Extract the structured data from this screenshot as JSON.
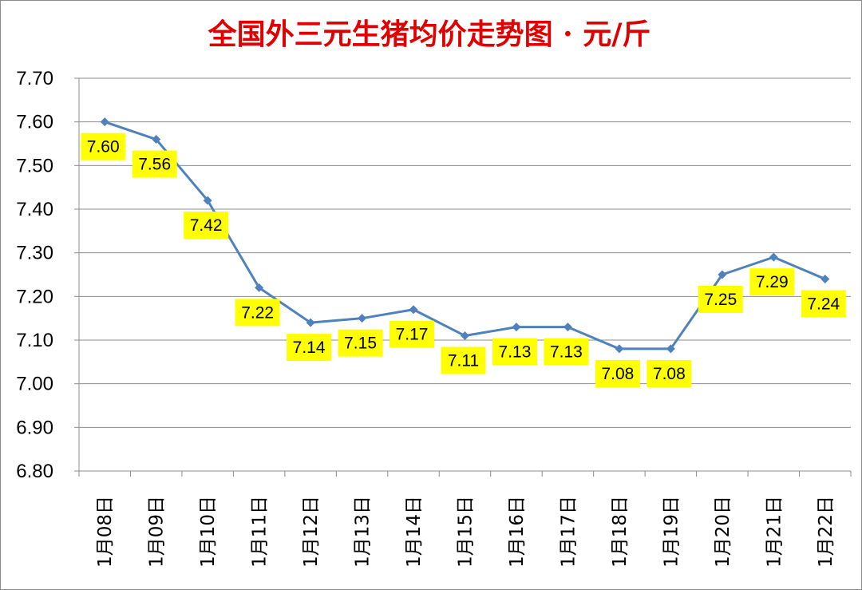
{
  "chart_data": {
    "type": "line",
    "title": "全国外三元生猪均价走势图 · 元/斤",
    "xlabel": "",
    "ylabel": "",
    "categories": [
      "1月08日",
      "1月09日",
      "1月10日",
      "1月11日",
      "1月12日",
      "1月13日",
      "1月14日",
      "1月15日",
      "1月16日",
      "1月17日",
      "1月18日",
      "1月19日",
      "1月20日",
      "1月21日",
      "1月22日"
    ],
    "series": [
      {
        "values": [
          7.6,
          7.56,
          7.42,
          7.22,
          7.14,
          7.15,
          7.17,
          7.11,
          7.13,
          7.13,
          7.08,
          7.08,
          7.25,
          7.29,
          7.24
        ]
      }
    ],
    "data_labels": [
      "7.60",
      "7.56",
      "7.42",
      "7.22",
      "7.14",
      "7.15",
      "7.17",
      "7.11",
      "7.13",
      "7.13",
      "7.08",
      "7.08",
      "7.25",
      "7.29",
      "7.24"
    ],
    "y_ticks": [
      "6.80",
      "6.90",
      "7.00",
      "7.10",
      "7.20",
      "7.30",
      "7.40",
      "7.50",
      "7.60",
      "7.70"
    ],
    "ylim": [
      6.8,
      7.7
    ],
    "grid": true,
    "legend": "none",
    "colors": {
      "line": "#4f81bd",
      "title": "#e00000",
      "label_background": "#ffff00",
      "grid": "#8c8c8c"
    }
  }
}
